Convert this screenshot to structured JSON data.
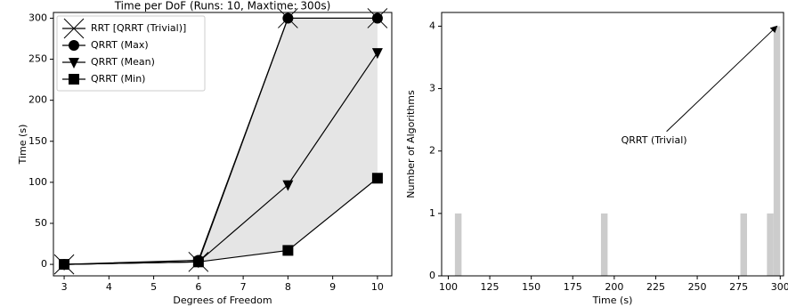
{
  "chart_data": [
    {
      "type": "line",
      "title": "Time per DoF (Runs: 10, Maxtime: 300s)",
      "x_label": "Degrees of Freedom",
      "y_label": "Time (s)",
      "x": [
        3,
        6,
        8,
        10
      ],
      "series": [
        {
          "name": "RRT [QRRT (Trivial)]",
          "color": "#000000",
          "marker": "x",
          "values": [
            0,
            3,
            300,
            300
          ]
        },
        {
          "name": "QRRT (Max)",
          "color": "#000000",
          "marker": "o",
          "values": [
            0,
            5,
            300,
            300
          ]
        },
        {
          "name": "QRRT (Mean)",
          "color": "#000000",
          "marker": "v",
          "values": [
            0,
            3,
            97,
            258
          ]
        },
        {
          "name": "QRRT (Min)",
          "color": "#000000",
          "marker": "s",
          "values": [
            0,
            3,
            17,
            105
          ]
        }
      ],
      "fill_between": [
        1,
        3
      ],
      "fill_color": "#e5e5e5",
      "xlim": [
        2.76,
        10.32
      ],
      "xticks": [
        3,
        4,
        5,
        6,
        7,
        8,
        9,
        10
      ],
      "ylim": [
        -14,
        307
      ],
      "yticks": [
        0,
        50,
        100,
        150,
        200,
        250,
        300
      ],
      "legend": "upper left"
    },
    {
      "type": "histogram",
      "x_label": "Time (s)",
      "y_label": "Number of Algorithms",
      "bins": [
        104,
        108,
        112,
        116,
        120,
        124,
        128,
        132,
        136,
        140,
        144,
        148,
        152,
        156,
        160,
        164,
        168,
        172,
        176,
        180,
        184,
        188,
        192,
        196,
        200,
        204,
        208,
        212,
        216,
        220,
        224,
        228,
        232,
        236,
        240,
        244,
        248,
        252,
        256,
        260,
        264,
        268,
        272,
        276,
        280,
        284,
        288,
        292,
        296,
        300
      ],
      "counts": [
        1,
        0,
        0,
        0,
        0,
        0,
        0,
        0,
        0,
        0,
        0,
        0,
        0,
        0,
        0,
        0,
        0,
        0,
        0,
        0,
        0,
        0,
        1,
        0,
        0,
        0,
        0,
        0,
        0,
        0,
        0,
        0,
        0,
        0,
        0,
        0,
        0,
        0,
        0,
        0,
        0,
        0,
        0,
        1,
        0,
        0,
        0,
        1,
        4
      ],
      "color": "#cccccc",
      "xlim": [
        96,
        302
      ],
      "xticks": [
        100,
        125,
        150,
        175,
        200,
        225,
        250,
        275,
        300
      ],
      "ylim": [
        0,
        4.22
      ],
      "yticks": [
        0,
        1,
        2,
        3,
        4
      ],
      "annotation": {
        "text": "QRRT (Trivial)",
        "xy": [
          298,
          4
        ],
        "xytext": [
          224,
          2.17
        ]
      }
    }
  ]
}
